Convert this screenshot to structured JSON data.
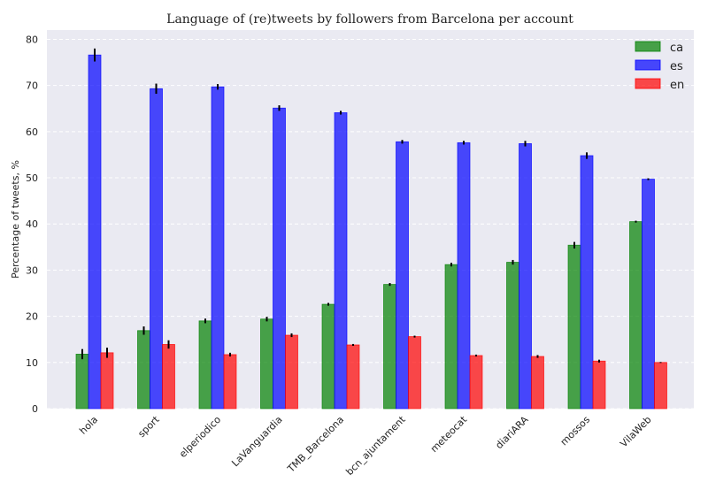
{
  "chart_data": {
    "type": "bar",
    "title": "Language of (re)tweets by followers from Barcelona per account",
    "xlabel": "",
    "ylabel": "Percentage of tweets, %",
    "ylim": [
      0,
      82
    ],
    "yticks": [
      0,
      10,
      20,
      30,
      40,
      50,
      60,
      70,
      80
    ],
    "grid": true,
    "legend_position": "top-right",
    "categories": [
      "hola",
      "sport",
      "elperiodico",
      "LaVanguardia",
      "TMB_Barcelona",
      "bcn_ajuntament",
      "meteocat",
      "diariARA",
      "mossos",
      "VilaWeb"
    ],
    "series": [
      {
        "name": "ca",
        "color": "#008000",
        "values": [
          11.8,
          16.9,
          19.0,
          19.4,
          22.6,
          26.9,
          31.2,
          31.7,
          35.4,
          40.5
        ],
        "errors": [
          1.1,
          0.9,
          0.5,
          0.5,
          0.3,
          0.3,
          0.4,
          0.5,
          0.7,
          0.2
        ]
      },
      {
        "name": "es",
        "color": "#0000ff",
        "values": [
          76.6,
          69.3,
          69.7,
          65.1,
          64.1,
          57.8,
          57.6,
          57.4,
          54.8,
          49.7
        ],
        "errors": [
          1.4,
          1.1,
          0.6,
          0.6,
          0.4,
          0.4,
          0.4,
          0.6,
          0.7,
          0.2
        ]
      },
      {
        "name": "en",
        "color": "#ff0000",
        "values": [
          12.1,
          13.9,
          11.7,
          15.9,
          13.8,
          15.6,
          11.5,
          11.3,
          10.3,
          10.0
        ],
        "errors": [
          1.1,
          0.9,
          0.4,
          0.4,
          0.2,
          0.2,
          0.2,
          0.3,
          0.3,
          0.1
        ]
      }
    ]
  }
}
